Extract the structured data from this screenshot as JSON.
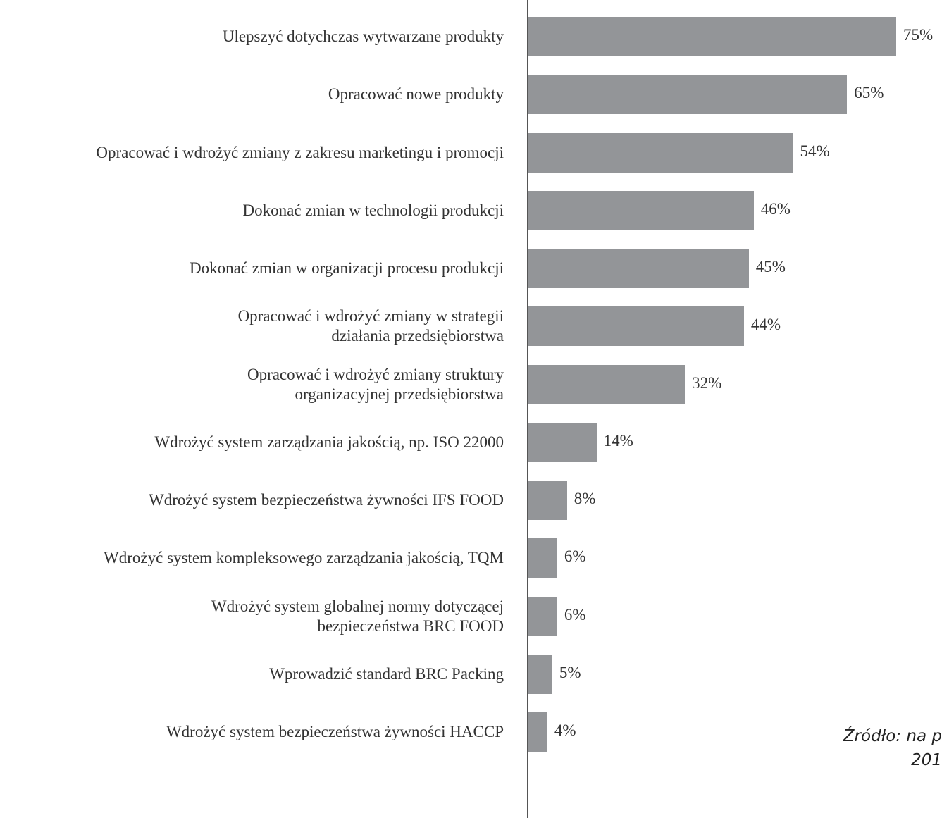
{
  "chart_data": {
    "type": "bar",
    "orientation": "horizontal",
    "categories": [
      "Ulepszyć dotychczas wytwarzane produkty",
      "Opracować nowe produkty",
      "Opracować i wdrożyć zmiany z zakresu marketingu i promocji",
      "Dokonać zmian w technologii produkcji",
      "Dokonać zmian w organizacji procesu produkcji",
      "Opracować i wdrożyć zmiany w strategii\ndziałania przedsiębiorstwa",
      "Opracować i wdrożyć zmiany struktury\norganizacyjnej przedsiębiorstwa",
      "Wdrożyć system zarządzania jakością, np. ISO 22000",
      "Wdrożyć system bezpieczeństwa żywności IFS FOOD",
      "Wdrożyć system kompleksowego zarządzania jakością, TQM",
      "Wdrożyć system globalnej normy dotyczącej\nbezpieczeństwa BRC FOOD",
      "Wprowadzić standard BRC Packing",
      "Wdrożyć system bezpieczeństwa żywności HACCP"
    ],
    "values": [
      75,
      65,
      54,
      46,
      45,
      44,
      32,
      14,
      8,
      6,
      6,
      5,
      4
    ],
    "value_labels": [
      "75%",
      "65%",
      "54%",
      "46%",
      "45%",
      "44%",
      "32%",
      "14%",
      "8%",
      "6%",
      "6%",
      "5%",
      "4%"
    ],
    "color": "#939598",
    "xlim": [
      0,
      75
    ],
    "source": "Źródło: na p\n201"
  }
}
